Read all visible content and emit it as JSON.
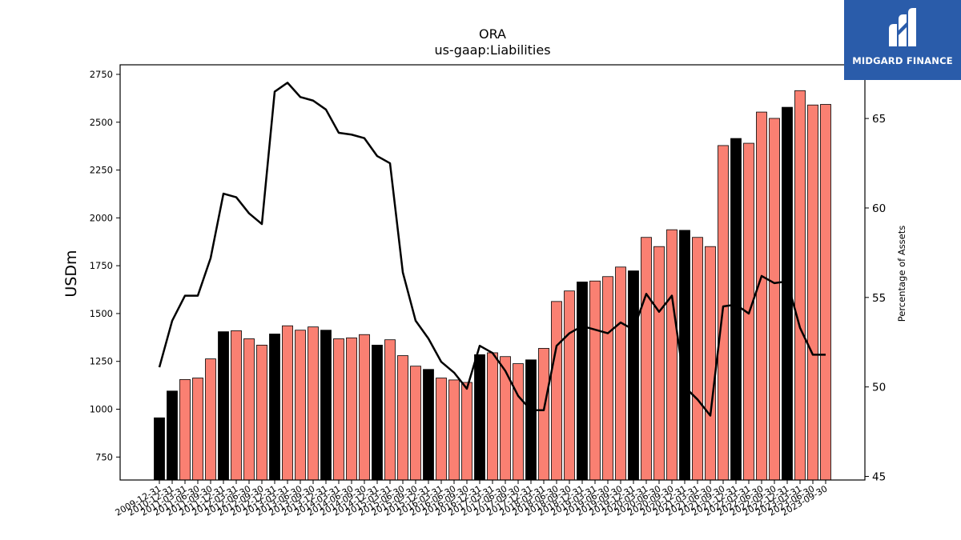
{
  "header": {
    "title": "ORA",
    "subtitle": "us-gaap:Liabilities"
  },
  "logo": {
    "text": "MIDGARD FINANCE",
    "background": "#2a5caa"
  },
  "colors": {
    "highlight_bar": "#000000",
    "regular_bar": "#fa8072",
    "line": "#000000"
  },
  "chart_data": {
    "type": "bar",
    "title": "ORA",
    "subtitle": "us-gaap:Liabilities",
    "ylabel": "USDm",
    "y2label": "Percentage of Assets",
    "ylim": [
      630,
      2800
    ],
    "y2lim": [
      44.8,
      68.0
    ],
    "yticks": [
      750,
      1000,
      1250,
      1500,
      1750,
      2000,
      2250,
      2500,
      2750
    ],
    "y2ticks": [
      45,
      50,
      55,
      60,
      65
    ],
    "grid": false,
    "categories": [
      "2009-12-31",
      "2010-12-31",
      "2011-03-31",
      "2011-06-30",
      "2011-09-30",
      "2011-12-31",
      "2012-03-31",
      "2012-06-30",
      "2012-09-30",
      "2012-12-31",
      "2013-03-31",
      "2013-06-30",
      "2013-09-30",
      "2013-12-31",
      "2014-03-31",
      "2014-06-30",
      "2014-09-30",
      "2014-12-31",
      "2015-03-31",
      "2015-06-30",
      "2015-09-30",
      "2015-12-31",
      "2016-03-31",
      "2016-06-30",
      "2016-09-30",
      "2016-12-31",
      "2017-03-31",
      "2017-06-30",
      "2017-09-30",
      "2017-12-31",
      "2018-03-31",
      "2018-06-30",
      "2018-09-30",
      "2018-12-31",
      "2019-03-31",
      "2019-06-30",
      "2019-09-30",
      "2019-12-31",
      "2020-03-31",
      "2020-06-30",
      "2020-09-30",
      "2020-12-31",
      "2021-03-31",
      "2021-06-30",
      "2021-09-30",
      "2021-12-31",
      "2022-03-31",
      "2022-06-30",
      "2022-09-30",
      "2022-12-31",
      "2023-03-31",
      "2023-06-30",
      "2023-09-30"
    ],
    "series": [
      {
        "type": "bar",
        "axis": "left",
        "values": [
          955,
          1095,
          1155,
          1163,
          1263,
          1405,
          1410,
          1368,
          1335,
          1393,
          1436,
          1413,
          1430,
          1413,
          1368,
          1373,
          1390,
          1335,
          1363,
          1280,
          1225,
          1208,
          1163,
          1153,
          1140,
          1285,
          1295,
          1275,
          1238,
          1258,
          1318,
          1563,
          1618,
          1665,
          1670,
          1693,
          1743,
          1723,
          1898,
          1850,
          1938,
          1935,
          1898,
          1850,
          2378,
          2415,
          2390,
          2553,
          2520,
          2578,
          2665,
          2590,
          2593
        ],
        "highlight": [
          true,
          true,
          false,
          false,
          false,
          true,
          false,
          false,
          false,
          true,
          false,
          false,
          false,
          true,
          false,
          false,
          false,
          true,
          false,
          false,
          false,
          true,
          false,
          false,
          false,
          true,
          false,
          false,
          false,
          true,
          false,
          false,
          false,
          true,
          false,
          false,
          false,
          true,
          false,
          false,
          false,
          true,
          false,
          false,
          false,
          true,
          false,
          false,
          false,
          true,
          false,
          false,
          false
        ]
      },
      {
        "type": "line",
        "axis": "right",
        "values": [
          51.1,
          53.7,
          55.1,
          55.1,
          57.2,
          60.8,
          60.6,
          59.7,
          59.1,
          66.5,
          67.0,
          66.2,
          66.0,
          65.5,
          64.2,
          64.1,
          63.9,
          62.9,
          62.5,
          56.4,
          53.7,
          52.7,
          51.4,
          50.8,
          49.9,
          52.3,
          51.9,
          50.9,
          49.5,
          48.7,
          48.7,
          52.3,
          53.0,
          53.4,
          53.2,
          53.0,
          53.6,
          53.2,
          55.2,
          54.2,
          55.1,
          50.0,
          49.3,
          48.4,
          54.5,
          54.6,
          54.1,
          56.2,
          55.8,
          55.9,
          53.3,
          51.8,
          51.8
        ]
      }
    ]
  }
}
